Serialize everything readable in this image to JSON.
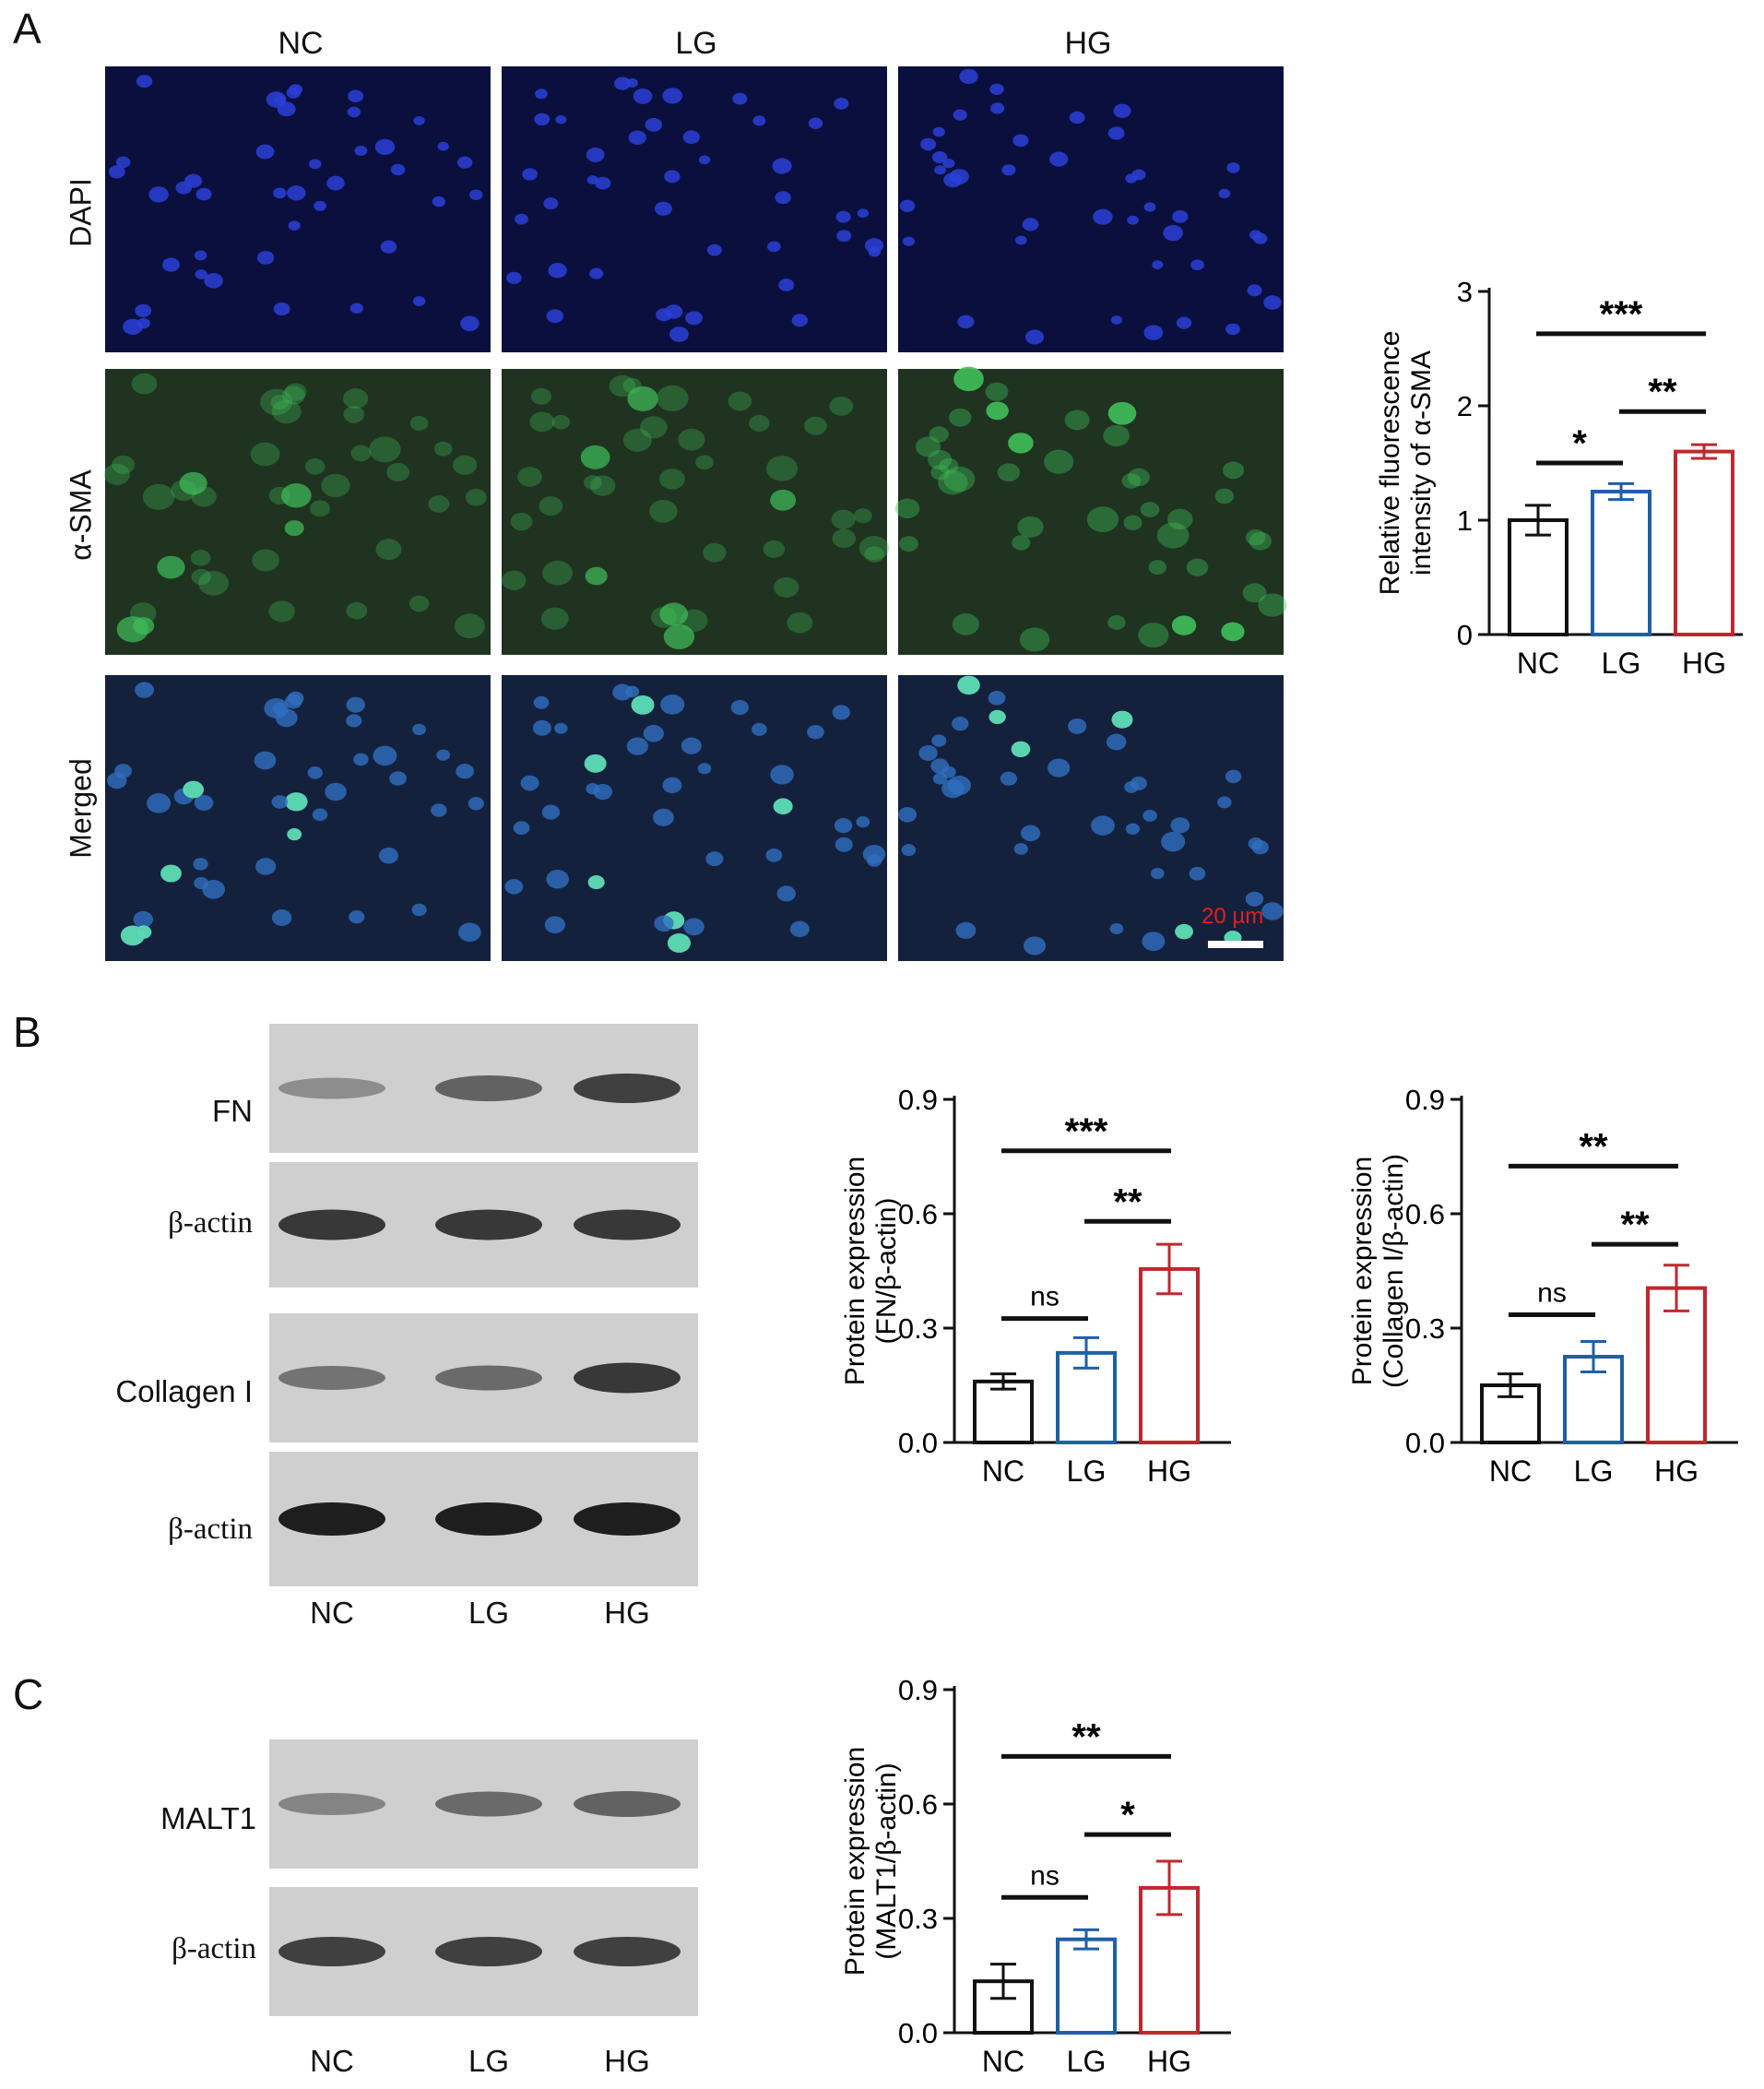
{
  "panels": {
    "A": "A",
    "B": "B",
    "C": "C"
  },
  "panelA": {
    "column_headers": [
      "NC",
      "LG",
      "HG"
    ],
    "row_labels": [
      "DAPI",
      "α-SMA",
      "Merged"
    ],
    "scale_bar_label": "20 µm",
    "colors": {
      "dapi_bg": "#0a0f3d",
      "dapi_nucleus": "#2a3fd6",
      "sma_bg": "#1f3320",
      "sma_cell": "#3fbf5a",
      "merged_bg": "#14213d",
      "scale_text": "#e02020"
    }
  },
  "panelB": {
    "blots": [
      {
        "label": "FN",
        "kind": "target"
      },
      {
        "label": "β-actin",
        "kind": "control"
      },
      {
        "label": "Collagen I",
        "kind": "target"
      },
      {
        "label": "β-actin",
        "kind": "control"
      }
    ],
    "lanes": [
      "NC",
      "LG",
      "HG"
    ]
  },
  "panelC": {
    "blots": [
      {
        "label": "MALT1",
        "kind": "target"
      },
      {
        "label": "β-actin",
        "kind": "control"
      }
    ],
    "lanes": [
      "NC",
      "LG",
      "HG"
    ]
  },
  "chart_data": [
    {
      "id": "sma",
      "type": "bar",
      "categories": [
        "NC",
        "LG",
        "HG"
      ],
      "values": [
        1.0,
        1.25,
        1.6
      ],
      "errors": [
        0.13,
        0.07,
        0.06
      ],
      "colors": [
        "#111111",
        "#1f5fa8",
        "#c0282d"
      ],
      "ylabel_lines": [
        "Relative fluorescence",
        "intensity of α-SMA"
      ],
      "ylim": [
        0,
        3
      ],
      "yticks": [
        "0",
        "1",
        "2",
        "3"
      ],
      "significance": [
        {
          "from": 0,
          "to": 1,
          "label": "*",
          "level": 1.5
        },
        {
          "from": 1,
          "to": 2,
          "label": "**",
          "level": 1.95
        },
        {
          "from": 0,
          "to": 2,
          "label": "***",
          "level": 2.63
        }
      ]
    },
    {
      "id": "fn",
      "type": "bar",
      "categories": [
        "NC",
        "LG",
        "HG"
      ],
      "values": [
        0.16,
        0.235,
        0.455
      ],
      "errors": [
        0.02,
        0.04,
        0.065
      ],
      "colors": [
        "#111111",
        "#1f5fa8",
        "#c0282d"
      ],
      "ylabel_lines": [
        "Protein expression",
        "(FN/β-actin)"
      ],
      "ylim": [
        0,
        0.9
      ],
      "yticks": [
        "0.0",
        "0.3",
        "0.6",
        "0.9"
      ],
      "significance": [
        {
          "from": 0,
          "to": 1,
          "label": "ns",
          "level": 0.325
        },
        {
          "from": 1,
          "to": 2,
          "label": "**",
          "level": 0.58
        },
        {
          "from": 0,
          "to": 2,
          "label": "***",
          "level": 0.765
        }
      ]
    },
    {
      "id": "col",
      "type": "bar",
      "categories": [
        "NC",
        "LG",
        "HG"
      ],
      "values": [
        0.15,
        0.225,
        0.405
      ],
      "errors": [
        0.03,
        0.04,
        0.06
      ],
      "colors": [
        "#111111",
        "#1f5fa8",
        "#c0282d"
      ],
      "ylabel_lines": [
        "Protein expression",
        "(Collagen I/β-actin)"
      ],
      "ylim": [
        0,
        0.9
      ],
      "yticks": [
        "0.0",
        "0.3",
        "0.6",
        "0.9"
      ],
      "significance": [
        {
          "from": 0,
          "to": 1,
          "label": "ns",
          "level": 0.335
        },
        {
          "from": 1,
          "to": 2,
          "label": "**",
          "level": 0.52
        },
        {
          "from": 0,
          "to": 2,
          "label": "**",
          "level": 0.725
        }
      ]
    },
    {
      "id": "malt",
      "type": "bar",
      "categories": [
        "NC",
        "LG",
        "HG"
      ],
      "values": [
        0.135,
        0.245,
        0.38
      ],
      "errors": [
        0.045,
        0.025,
        0.07
      ],
      "colors": [
        "#111111",
        "#1f5fa8",
        "#c0282d"
      ],
      "ylabel_lines": [
        "Protein expression",
        "(MALT1/β-actin)"
      ],
      "ylim": [
        0,
        0.9
      ],
      "yticks": [
        "0.0",
        "0.3",
        "0.6",
        "0.9"
      ],
      "significance": [
        {
          "from": 0,
          "to": 1,
          "label": "ns",
          "level": 0.355
        },
        {
          "from": 1,
          "to": 2,
          "label": "*",
          "level": 0.52
        },
        {
          "from": 0,
          "to": 2,
          "label": "**",
          "level": 0.725
        }
      ]
    }
  ]
}
